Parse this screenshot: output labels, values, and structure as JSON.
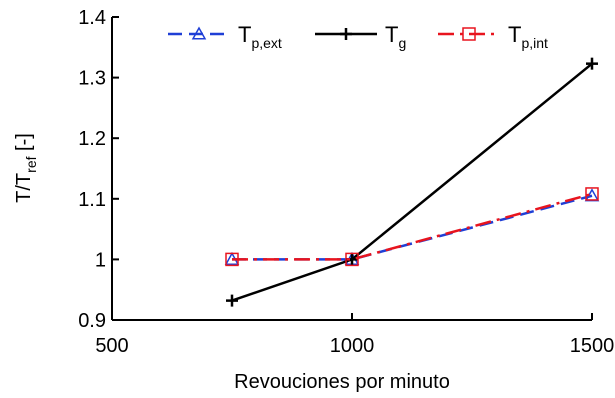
{
  "chart_data": {
    "type": "line",
    "xlabel": "Revouciones por minuto",
    "ylabel": {
      "main": "T/T",
      "sub": "ref",
      "suffix": " [-]"
    },
    "xlim": [
      500,
      1500
    ],
    "ylim": [
      0.9,
      1.4
    ],
    "x_ticks": [
      500,
      1000,
      1500
    ],
    "x_tick_labels": [
      "500",
      "1000",
      "1500"
    ],
    "y_ticks": [
      0.9,
      1.0,
      1.1,
      1.2,
      1.3,
      1.4
    ],
    "y_tick_labels": [
      "0.9",
      "1",
      "1.1",
      "1.2",
      "1.3",
      "1.4"
    ],
    "grid": false,
    "legend_position": "top",
    "series": [
      {
        "name": "T",
        "sub": "p,ext",
        "color": "#1f3fd6",
        "dash": "dashed",
        "marker": "triangle",
        "x": [
          750,
          1000,
          1500
        ],
        "y": [
          1.0,
          1.0,
          1.105
        ]
      },
      {
        "name": "T",
        "sub": "g",
        "color": "#000000",
        "dash": "solid",
        "marker": "plus",
        "x": [
          750,
          1000,
          1500
        ],
        "y": [
          0.932,
          1.0,
          1.323
        ]
      },
      {
        "name": "T",
        "sub": "p,int",
        "color": "#e8141e",
        "dash": "dashdot",
        "marker": "square",
        "x": [
          750,
          1000,
          1500
        ],
        "y": [
          1.0,
          1.0,
          1.108
        ]
      }
    ]
  }
}
